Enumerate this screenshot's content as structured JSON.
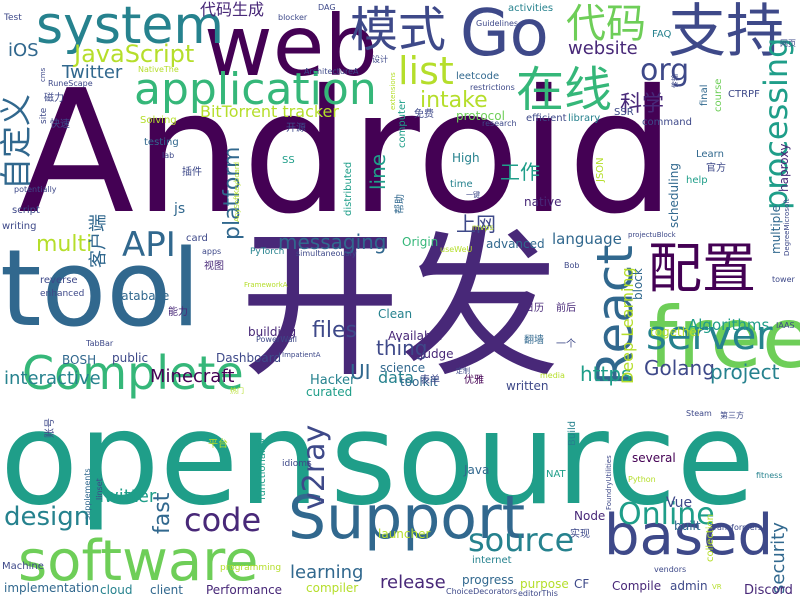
{
  "palette": [
    "#440154",
    "#482878",
    "#3e4989",
    "#31688e",
    "#26828e",
    "#1f9e89",
    "#35b779",
    "#6ece58",
    "#b5de2b",
    "#fde725"
  ],
  "words": [
    {
      "text": "Android",
      "color": "#440154"
    },
    {
      "text": "open",
      "color": "#1f9e89"
    },
    {
      "text": "source",
      "color": "#1f9e89"
    },
    {
      "text": "tool",
      "color": "#31688e"
    },
    {
      "text": "开发",
      "color": "#482878"
    },
    {
      "text": "web",
      "color": "#440154"
    },
    {
      "text": "Go",
      "color": "#3e4989"
    },
    {
      "text": "支持",
      "color": "#3e4989"
    },
    {
      "text": "system",
      "color": "#26828e"
    },
    {
      "text": "模式",
      "color": "#3e4989"
    },
    {
      "text": "代码",
      "color": "#6ece58"
    },
    {
      "text": "application",
      "color": "#35b779"
    },
    {
      "text": "在线",
      "color": "#35b779"
    },
    {
      "text": "free",
      "color": "#6ece58"
    },
    {
      "text": "Support",
      "color": "#31688e"
    },
    {
      "text": "software",
      "color": "#6ece58"
    },
    {
      "text": "based",
      "color": "#3e4989"
    },
    {
      "text": "配置",
      "color": "#440154"
    },
    {
      "text": "Complete",
      "color": "#35b779"
    },
    {
      "text": "React",
      "color": "#31688e"
    },
    {
      "text": "server",
      "color": "#26828e"
    },
    {
      "text": "processing",
      "color": "#1f9e89"
    },
    {
      "text": "自定义",
      "color": "#31688e"
    },
    {
      "text": "JavaScript",
      "color": "#b5de2b"
    },
    {
      "text": "list",
      "color": "#b5de2b"
    },
    {
      "text": "org",
      "color": "#3e4989"
    },
    {
      "text": "intake",
      "color": "#b5de2b"
    },
    {
      "text": "API",
      "color": "#31688e"
    },
    {
      "text": "code",
      "color": "#482878"
    },
    {
      "text": "design",
      "color": "#26828e"
    },
    {
      "text": "Online",
      "color": "#1f9e89"
    },
    {
      "text": "v2ray",
      "color": "#3e4989"
    },
    {
      "text": "source",
      "color": "#26828e"
    },
    {
      "text": "security",
      "color": "#31688e"
    },
    {
      "text": "website",
      "color": "#482878"
    },
    {
      "text": "iOS",
      "color": "#31688e"
    },
    {
      "text": "Twitter",
      "color": "#31688e"
    },
    {
      "text": "BitTorrent tracker",
      "color": "#b5de2b"
    },
    {
      "text": "科学",
      "color": "#482878"
    },
    {
      "text": "代码生成",
      "color": "#482878"
    },
    {
      "text": "multi",
      "color": "#b5de2b"
    },
    {
      "text": "platform",
      "color": "#31688e"
    },
    {
      "text": "messaging",
      "color": "#31688e"
    },
    {
      "text": "客户端",
      "color": "#31688e"
    },
    {
      "text": "Minecraft",
      "color": "#440154"
    },
    {
      "text": "Golang",
      "color": "#3e4989"
    },
    {
      "text": "project",
      "color": "#26828e"
    },
    {
      "text": "https",
      "color": "#1f9e89"
    },
    {
      "text": "files",
      "color": "#3e4989"
    },
    {
      "text": "fast",
      "color": "#31688e"
    },
    {
      "text": "UI",
      "color": "#31688e"
    },
    {
      "text": "thing",
      "color": "#3e4989"
    },
    {
      "text": "Twitter",
      "color": "#1f9e89"
    },
    {
      "text": "interactive",
      "color": "#26828e"
    },
    {
      "text": "Deep Learning",
      "color": "#b5de2b"
    },
    {
      "text": "line",
      "color": "#1f9e89"
    },
    {
      "text": "工作",
      "color": "#1f9e89"
    },
    {
      "text": "上网",
      "color": "#3e4989"
    },
    {
      "text": "learning",
      "color": "#31688e"
    },
    {
      "text": "release",
      "color": "#482878"
    },
    {
      "text": "data",
      "color": "#26828e"
    },
    {
      "text": "Hacker",
      "color": "#26828e"
    },
    {
      "text": "language",
      "color": "#31688e"
    },
    {
      "text": "Algorithms",
      "color": "#1f9e89"
    },
    {
      "text": "scheduling",
      "color": "#31688e"
    },
    {
      "text": "Java",
      "color": "#31688e"
    },
    {
      "text": "Node",
      "color": "#482878"
    },
    {
      "text": "progress",
      "color": "#31688e"
    },
    {
      "text": "Vue",
      "color": "#3e4989"
    },
    {
      "text": "Discord",
      "color": "#482878"
    },
    {
      "text": "Performance",
      "color": "#482878"
    },
    {
      "text": "implementation",
      "color": "#31688e"
    },
    {
      "text": "cloud",
      "color": "#26828e"
    },
    {
      "text": "client",
      "color": "#31688e"
    },
    {
      "text": "admin",
      "color": "#3e4989"
    },
    {
      "text": "Compile",
      "color": "#482878"
    },
    {
      "text": "purpose",
      "color": "#b5de2b"
    },
    {
      "text": "compiler",
      "color": "#b5de2b"
    },
    {
      "text": "launcher",
      "color": "#b5de2b"
    },
    {
      "text": "CF",
      "color": "#3e4989"
    },
    {
      "text": "multiple",
      "color": "#31688e"
    },
    {
      "text": "haproxy",
      "color": "#482878"
    },
    {
      "text": "Dashboard",
      "color": "#3e4989"
    },
    {
      "text": "building",
      "color": "#482878"
    },
    {
      "text": "Database",
      "color": "#31688e"
    },
    {
      "text": "advanced",
      "color": "#31688e"
    },
    {
      "text": "native",
      "color": "#482878"
    },
    {
      "text": "Origin",
      "color": "#35b779"
    },
    {
      "text": "Clean",
      "color": "#26828e"
    },
    {
      "text": "Available",
      "color": "#482878"
    },
    {
      "text": "judge",
      "color": "#482878"
    },
    {
      "text": "toolkit",
      "color": "#31688e"
    },
    {
      "text": "science",
      "color": "#31688e"
    },
    {
      "text": "curated",
      "color": "#1f9e89"
    },
    {
      "text": "public",
      "color": "#3e4989"
    },
    {
      "text": "BOSH",
      "color": "#31688e"
    },
    {
      "text": "collection",
      "color": "#b5de2b"
    },
    {
      "text": "several",
      "color": "#440154"
    },
    {
      "text": "built",
      "color": "#31688e"
    },
    {
      "text": "written",
      "color": "#3e4989"
    },
    {
      "text": "together",
      "color": "#b5de2b"
    },
    {
      "text": "block",
      "color": "#31688e"
    },
    {
      "text": "activities",
      "color": "#26828e"
    },
    {
      "text": "FAQ",
      "color": "#26828e"
    },
    {
      "text": "Guidelines",
      "color": "#3e4989"
    },
    {
      "text": "leetcode",
      "color": "#31688e"
    },
    {
      "text": "restrictions",
      "color": "#3e4989"
    },
    {
      "text": "efficient",
      "color": "#3e4989"
    },
    {
      "text": "library",
      "color": "#26828e"
    },
    {
      "text": "SSR",
      "color": "#3e4989"
    },
    {
      "text": "protocol",
      "color": "#6ece58"
    },
    {
      "text": "research",
      "color": "#3e4989"
    },
    {
      "text": "command",
      "color": "#3e4989"
    },
    {
      "text": "final",
      "color": "#31688e"
    },
    {
      "text": "course",
      "color": "#6ece58"
    },
    {
      "text": "CTRPF",
      "color": "#3e4989"
    },
    {
      "text": "High",
      "color": "#26828e"
    },
    {
      "text": "JSON",
      "color": "#b5de2b"
    },
    {
      "text": "time",
      "color": "#26828e"
    },
    {
      "text": "Learn",
      "color": "#31688e"
    },
    {
      "text": "help",
      "color": "#1f9e89"
    },
    {
      "text": "官方",
      "color": "#3e4989"
    },
    {
      "text": "distributed",
      "color": "#1f9e89"
    },
    {
      "text": "computer",
      "color": "#1f9e89"
    },
    {
      "text": "Solving",
      "color": "#b5de2b"
    },
    {
      "text": "testing",
      "color": "#31688e"
    },
    {
      "text": "开源",
      "color": "#3e4989"
    },
    {
      "text": "SS",
      "color": "#1f9e89"
    },
    {
      "text": "js",
      "color": "#31688e"
    },
    {
      "text": "script",
      "color": "#3e4989"
    },
    {
      "text": "writing",
      "color": "#3e4989"
    },
    {
      "text": "reverse",
      "color": "#3e4989"
    },
    {
      "text": "enhanced",
      "color": "#3e4989"
    },
    {
      "text": "card",
      "color": "#3e4989"
    },
    {
      "text": "apps",
      "color": "#3e4989"
    },
    {
      "text": "PyTorch",
      "color": "#26828e"
    },
    {
      "text": "simultaneously",
      "color": "#3e4989"
    },
    {
      "text": "视图",
      "color": "#482878"
    },
    {
      "text": "能力",
      "color": "#482878"
    },
    {
      "text": "翻墙",
      "color": "#31688e"
    },
    {
      "text": "日历",
      "color": "#482878"
    },
    {
      "text": "前后",
      "color": "#482878"
    },
    {
      "text": "一个",
      "color": "#3e4989"
    },
    {
      "text": "表单",
      "color": "#3e4989"
    },
    {
      "text": "优雅",
      "color": "#440154"
    },
    {
      "text": "账号",
      "color": "#3e4989"
    },
    {
      "text": "平台",
      "color": "#b5de2b"
    },
    {
      "text": "实现",
      "color": "#3e4989"
    },
    {
      "text": "插件",
      "color": "#3e4989"
    },
    {
      "text": "快速",
      "color": "#3e4989"
    },
    {
      "text": "磁力",
      "color": "#3e4989"
    },
    {
      "text": "设计",
      "color": "#3e4989"
    },
    {
      "text": "免费",
      "color": "#3e4989"
    },
    {
      "text": "帮助",
      "color": "#31688e"
    },
    {
      "text": "NAT",
      "color": "#1f9e89"
    },
    {
      "text": "Build",
      "color": "#26828e"
    },
    {
      "text": "functionality",
      "color": "#1f9e89"
    },
    {
      "text": "idioms",
      "color": "#3e4989"
    },
    {
      "text": "internet",
      "color": "#26828e"
    },
    {
      "text": "programming",
      "color": "#b5de2b"
    },
    {
      "text": "Machine",
      "color": "#3e4989"
    },
    {
      "text": "supplements",
      "color": "#31688e"
    },
    {
      "text": "linset",
      "color": "#3e4989"
    },
    {
      "text": "Python",
      "color": "#b5de2b"
    },
    {
      "text": "fitness",
      "color": "#26828e"
    },
    {
      "text": "Transformers",
      "color": "#3e4989"
    },
    {
      "text": "Steam",
      "color": "#3e4989"
    },
    {
      "text": "vendors",
      "color": "#3e4989"
    },
    {
      "text": "media",
      "color": "#b5de2b"
    },
    {
      "text": "tower",
      "color": "#3e4989"
    },
    {
      "text": "IAAS",
      "color": "#3e4989"
    },
    {
      "text": "Bob",
      "color": "#3e4989"
    },
    {
      "text": "mvps",
      "color": "#b5de2b"
    },
    {
      "text": "useWeU",
      "color": "#b5de2b"
    },
    {
      "text": "projectuBlock",
      "color": "#3e4989"
    },
    {
      "text": "DegreeMicrosoft",
      "color": "#3e4989"
    },
    {
      "text": "ArchitectureA",
      "color": "#3e4989"
    },
    {
      "text": "NativeThe",
      "color": "#b5de2b"
    },
    {
      "text": "RuneScape",
      "color": "#3e4989"
    },
    {
      "text": "blocker",
      "color": "#3e4989"
    },
    {
      "text": "DAG",
      "color": "#3e4989"
    },
    {
      "text": "Test",
      "color": "#3e4989"
    },
    {
      "text": "网页",
      "color": "#3e4989"
    },
    {
      "text": "TabBar",
      "color": "#3e4989"
    },
    {
      "text": "PowerWall",
      "color": "#3e4989"
    },
    {
      "text": "FrameworkA",
      "color": "#b5de2b"
    },
    {
      "text": "ImpatientA",
      "color": "#3e4989"
    },
    {
      "text": "AnySoftKeyboard",
      "color": "#b5de2b"
    },
    {
      "text": "ChoiceDecorators",
      "color": "#3e4989"
    },
    {
      "text": "editorThis",
      "color": "#3e4989"
    },
    {
      "text": "FoundryUtilities",
      "color": "#3e4989"
    },
    {
      "text": "第三方",
      "color": "#3e4989"
    },
    {
      "text": "定制",
      "color": "#3e4989"
    },
    {
      "text": "热门",
      "color": "#b5de2b"
    },
    {
      "text": "一键",
      "color": "#3e4989"
    },
    {
      "text": "传输",
      "color": "#3e4989"
    },
    {
      "text": "cms",
      "color": "#3e4989"
    },
    {
      "text": "site",
      "color": "#3e4989"
    },
    {
      "text": "lab",
      "color": "#3e4989"
    },
    {
      "text": "extensions",
      "color": "#b5de2b"
    },
    {
      "text": "potentially",
      "color": "#3e4989"
    },
    {
      "text": "VR",
      "color": "#b5de2b"
    }
  ]
}
